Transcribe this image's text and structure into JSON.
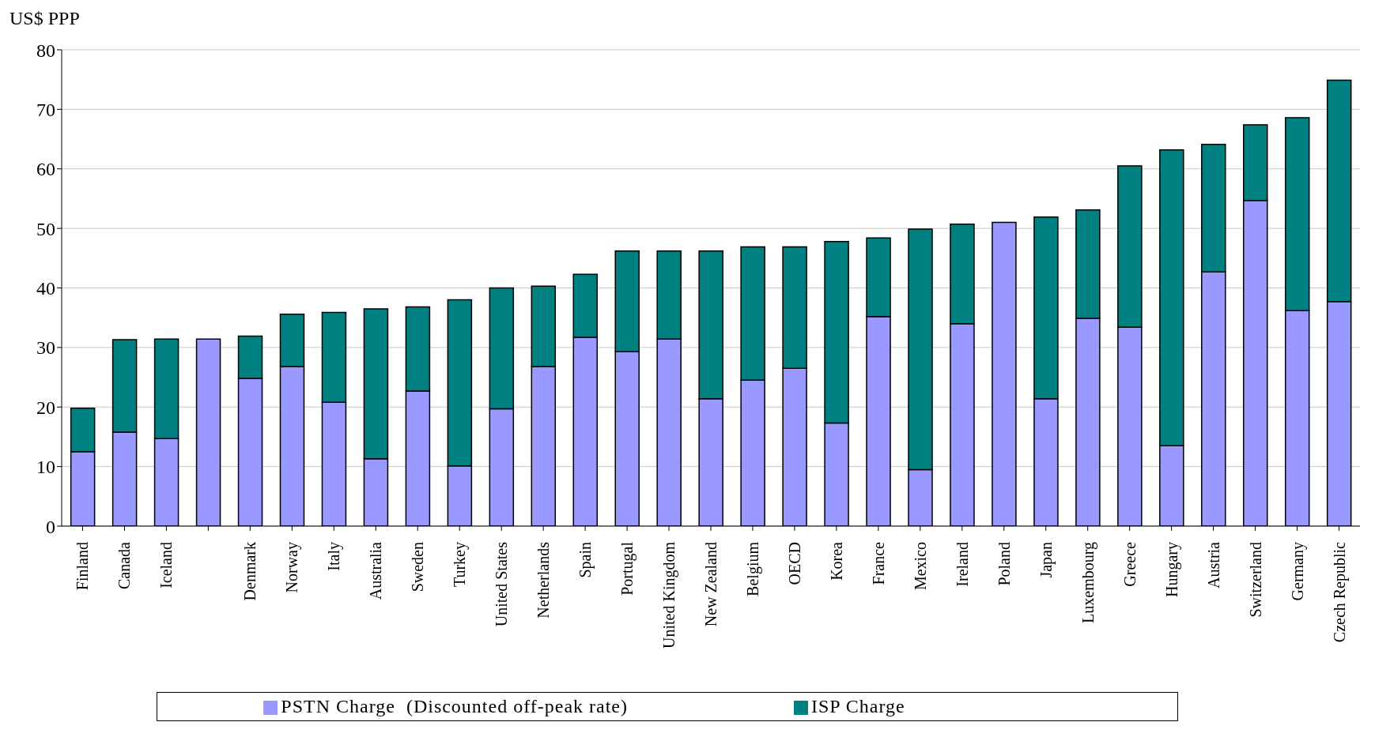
{
  "chart_data": {
    "type": "bar",
    "stacked": true,
    "ylabel": "US$ PPP",
    "categories": [
      "Finland",
      "Canada",
      "Iceland",
      null,
      "Denmark",
      "Norway",
      "Italy",
      "Australia",
      "Sweden",
      "Turkey",
      "United States",
      "Netherlands",
      "Spain",
      "Portugal",
      "United Kingdom",
      "New Zealand",
      "Belgium",
      "OECD",
      "Korea",
      "France",
      "Mexico",
      "Ireland",
      "Poland",
      "Japan",
      "Luxembourg",
      "Greece",
      "Hungary",
      "Austria",
      "Switzerland",
      "Germany",
      "Czech Republic"
    ],
    "series": [
      {
        "name": "PSTN Charge  (Discounted off-peak rate)",
        "color": "#9999ff",
        "values": [
          12.5,
          15.8,
          14.7,
          31.4,
          24.8,
          26.8,
          20.8,
          11.3,
          22.7,
          10.1,
          19.7,
          26.8,
          31.7,
          29.3,
          31.4,
          21.4,
          24.5,
          26.5,
          17.3,
          35.2,
          9.5,
          34.0,
          51.0,
          21.4,
          34.9,
          33.4,
          13.5,
          42.7,
          54.7,
          36.2,
          37.7
        ]
      },
      {
        "name": "ISP Charge",
        "color": "#008080",
        "values": [
          7.3,
          15.5,
          16.7,
          0,
          7.1,
          8.8,
          15.1,
          25.2,
          14.1,
          27.9,
          20.3,
          13.5,
          10.6,
          16.9,
          14.8,
          24.8,
          22.4,
          20.4,
          30.5,
          13.2,
          40.4,
          16.7,
          0,
          30.5,
          18.2,
          27.1,
          49.7,
          21.4,
          12.7,
          32.4,
          37.2
        ]
      }
    ],
    "ylim": [
      0,
      80
    ],
    "yticks": [
      0,
      10,
      20,
      30,
      40,
      50,
      60,
      70,
      80
    ],
    "grid": "y",
    "legend": "bottom"
  }
}
